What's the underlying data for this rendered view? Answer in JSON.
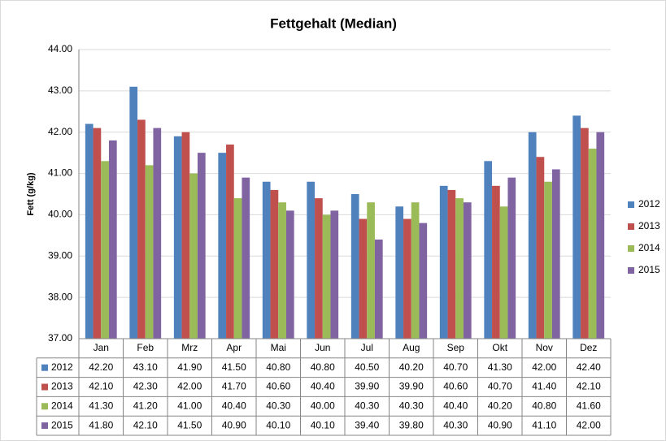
{
  "chart_data": {
    "type": "bar",
    "title": "Fettgehalt  (Median)",
    "y_label": "Fett (g/kg)",
    "categories": [
      "Jan",
      "Feb",
      "Mrz",
      "Apr",
      "Mai",
      "Jun",
      "Jul",
      "Aug",
      "Sep",
      "Okt",
      "Nov",
      "Dez"
    ],
    "series": [
      {
        "name": "2012",
        "color": "#4f81bd",
        "values": [
          42.2,
          43.1,
          41.9,
          41.5,
          40.8,
          40.8,
          40.5,
          40.2,
          40.7,
          41.3,
          42.0,
          42.4
        ],
        "value_labels": [
          "42.20",
          "43.10",
          "41.90",
          "41.50",
          "40.80",
          "40.80",
          "40.50",
          "40.20",
          "40.70",
          "41.30",
          "42.00",
          "42.40"
        ]
      },
      {
        "name": "2013",
        "color": "#c0504d",
        "values": [
          42.1,
          42.3,
          42.0,
          41.7,
          40.6,
          40.4,
          39.9,
          39.9,
          40.6,
          40.7,
          41.4,
          42.1
        ],
        "value_labels": [
          "42.10",
          "42.30",
          "42.00",
          "41.70",
          "40.60",
          "40.40",
          "39.90",
          "39.90",
          "40.60",
          "40.70",
          "41.40",
          "42.10"
        ]
      },
      {
        "name": "2014",
        "color": "#9bbb59",
        "values": [
          41.3,
          41.2,
          41.0,
          40.4,
          40.3,
          40.0,
          40.3,
          40.3,
          40.4,
          40.2,
          40.8,
          41.6
        ],
        "value_labels": [
          "41.30",
          "41.20",
          "41.00",
          "40.40",
          "40.30",
          "40.00",
          "40.30",
          "40.30",
          "40.40",
          "40.20",
          "40.80",
          "41.60"
        ]
      },
      {
        "name": "2015",
        "color": "#8064a2",
        "values": [
          41.8,
          42.1,
          41.5,
          40.9,
          40.1,
          40.1,
          39.4,
          39.8,
          40.3,
          40.9,
          41.1,
          42.0
        ],
        "value_labels": [
          "41.80",
          "42.10",
          "41.50",
          "40.90",
          "40.10",
          "40.10",
          "39.40",
          "39.80",
          "40.30",
          "40.90",
          "41.10",
          "42.00"
        ]
      }
    ],
    "ylim": [
      37,
      44
    ],
    "yticks": [
      {
        "value": 37,
        "label": "37.00"
      },
      {
        "value": 38,
        "label": "38.00"
      },
      {
        "value": 39,
        "label": "39.00"
      },
      {
        "value": 40,
        "label": "40.00"
      },
      {
        "value": 41,
        "label": "41.00"
      },
      {
        "value": 42,
        "label": "42.00"
      },
      {
        "value": 43,
        "label": "43.00"
      },
      {
        "value": 44,
        "label": "44.00"
      }
    ],
    "grid": true,
    "legend": "right"
  }
}
